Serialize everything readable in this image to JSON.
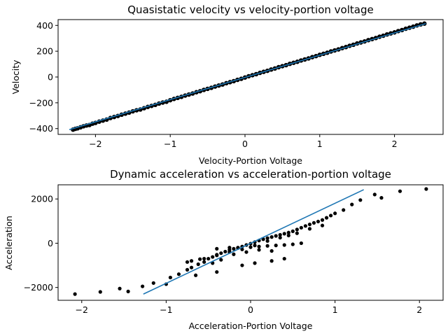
{
  "chart_data": [
    {
      "type": "scatter",
      "title": "Quasistatic velocity vs velocity-portion voltage",
      "xlabel": "Velocity-Portion Voltage",
      "ylabel": "Velocity",
      "xlim": [
        -2.5,
        2.65
      ],
      "ylim": [
        -445,
        445
      ],
      "xticks": [
        -2,
        -1,
        0,
        1,
        2
      ],
      "yticks": [
        -400,
        -200,
        0,
        200,
        400
      ],
      "xtick_labels": [
        "−2",
        "−1",
        "0",
        "1",
        "2"
      ],
      "ytick_labels": [
        "−400",
        "−200",
        "0",
        "200",
        "400"
      ],
      "grid": false,
      "marker_color": "#000000",
      "fit_color": "#1f77b4",
      "points": {
        "x": [
          -2.3,
          -2.27,
          -2.24,
          -2.2,
          -2.16,
          -2.12,
          -2.08,
          -2.04,
          -2.0,
          -1.95,
          -1.9,
          -1.85,
          -1.8,
          -1.75,
          -1.7,
          -1.65,
          -1.6,
          -1.55,
          -1.5,
          -1.45,
          -1.4,
          -1.35,
          -1.3,
          -1.25,
          -1.2,
          -1.15,
          -1.1,
          -1.05,
          -1.0,
          -0.95,
          -0.9,
          -0.85,
          -0.8,
          -0.75,
          -0.7,
          -0.65,
          -0.6,
          -0.55,
          -0.5,
          -0.45,
          -0.4,
          -0.35,
          -0.3,
          -0.25,
          -0.2,
          -0.15,
          -0.1,
          -0.05,
          0.0,
          0.05,
          0.1,
          0.15,
          0.2,
          0.25,
          0.3,
          0.35,
          0.4,
          0.45,
          0.5,
          0.55,
          0.6,
          0.65,
          0.7,
          0.75,
          0.8,
          0.85,
          0.9,
          0.95,
          1.0,
          1.05,
          1.1,
          1.15,
          1.2,
          1.25,
          1.3,
          1.35,
          1.4,
          1.45,
          1.5,
          1.55,
          1.6,
          1.65,
          1.7,
          1.75,
          1.8,
          1.85,
          1.9,
          1.95,
          2.0,
          2.05,
          2.1,
          2.15,
          2.2,
          2.25,
          2.3,
          2.35,
          2.4
        ],
        "y": [
          -408,
          -402,
          -398,
          -390,
          -382,
          -376,
          -372,
          -362,
          -356,
          -346,
          -338,
          -330,
          -318,
          -310,
          -302,
          -292,
          -284,
          -276,
          -266,
          -258,
          -252,
          -242,
          -232,
          -224,
          -216,
          -206,
          -198,
          -192,
          -180,
          -170,
          -162,
          -154,
          -144,
          -136,
          -128,
          -118,
          -110,
          -100,
          -92,
          -84,
          -74,
          -66,
          -58,
          -48,
          -40,
          -32,
          -22,
          -14,
          -4,
          6,
          14,
          22,
          32,
          40,
          48,
          58,
          66,
          76,
          84,
          92,
          102,
          110,
          118,
          128,
          136,
          144,
          154,
          162,
          172,
          180,
          188,
          198,
          206,
          214,
          224,
          232,
          242,
          250,
          260,
          268,
          276,
          286,
          294,
          302,
          312,
          320,
          330,
          338,
          346,
          356,
          364,
          374,
          382,
          390,
          400,
          408,
          414
        ]
      },
      "fit": {
        "x": [
          -2.35,
          2.42
        ],
        "y": [
          -408,
          414
        ]
      }
    },
    {
      "type": "scatter",
      "title": "Dynamic acceleration vs acceleration-portion voltage",
      "xlabel": "Acceleration-Portion Voltage",
      "ylabel": "Acceleration",
      "xlim": [
        -2.28,
        2.28
      ],
      "ylim": [
        -2580,
        2640
      ],
      "xticks": [
        -2,
        -1,
        0,
        1,
        2
      ],
      "yticks": [
        -2000,
        0,
        2000
      ],
      "xtick_labels": [
        "−2",
        "−1",
        "0",
        "1",
        "2"
      ],
      "ytick_labels": [
        "−2000",
        "0",
        "2000"
      ],
      "grid": false,
      "marker_color": "#000000",
      "fit_color": "#1f77b4",
      "points": {
        "x": [
          -2.08,
          -1.78,
          -1.55,
          -1.45,
          -1.28,
          -1.15,
          -1.0,
          -0.95,
          -0.85,
          -0.75,
          -0.7,
          -0.62,
          -0.55,
          -0.5,
          -0.45,
          -0.4,
          -0.35,
          -0.3,
          -0.25,
          -0.2,
          -0.15,
          -0.1,
          -0.05,
          0.0,
          0.05,
          0.1,
          0.15,
          0.2,
          0.25,
          0.3,
          0.35,
          0.4,
          0.45,
          0.5,
          0.55,
          0.6,
          0.65,
          0.7,
          0.75,
          0.8,
          0.85,
          0.9,
          0.95,
          1.0,
          1.1,
          1.2,
          1.3,
          1.47,
          1.55,
          1.77,
          2.08,
          -0.7,
          -0.55,
          -0.4,
          -0.25,
          -0.1,
          0.05,
          0.2,
          0.35,
          0.45,
          0.55,
          0.7,
          0.85,
          -0.4,
          -0.25,
          -0.15,
          0.0,
          0.1,
          0.2,
          0.3,
          0.4,
          0.5,
          0.6,
          -0.75,
          -0.6,
          -0.45,
          -0.35,
          -0.2,
          -0.05,
          0.1,
          0.25,
          -0.65,
          -0.4,
          -0.1,
          0.05,
          0.25,
          0.4
        ],
        "y": [
          -2300,
          -2200,
          -2050,
          -2180,
          -1950,
          -1800,
          -1850,
          -1550,
          -1400,
          -1200,
          -1100,
          -950,
          -850,
          -700,
          -620,
          -520,
          -450,
          -380,
          -300,
          -250,
          -200,
          -150,
          -80,
          -20,
          50,
          120,
          180,
          230,
          280,
          330,
          380,
          430,
          480,
          540,
          620,
          700,
          780,
          850,
          920,
          980,
          1050,
          1150,
          1250,
          1350,
          1500,
          1750,
          1950,
          2200,
          2050,
          2350,
          2450,
          -800,
          -700,
          -550,
          -400,
          -280,
          -100,
          100,
          250,
          350,
          450,
          650,
          800,
          -250,
          -200,
          -220,
          -180,
          -150,
          -120,
          -100,
          -80,
          -50,
          0,
          -850,
          -720,
          -900,
          -750,
          -500,
          -400,
          -300,
          -350,
          -1450,
          -1300,
          -1000,
          -900,
          -800,
          -700
        ]
      },
      "fit": {
        "x": [
          -1.27,
          1.34
        ],
        "y": [
          -2300,
          2420
        ]
      }
    }
  ]
}
